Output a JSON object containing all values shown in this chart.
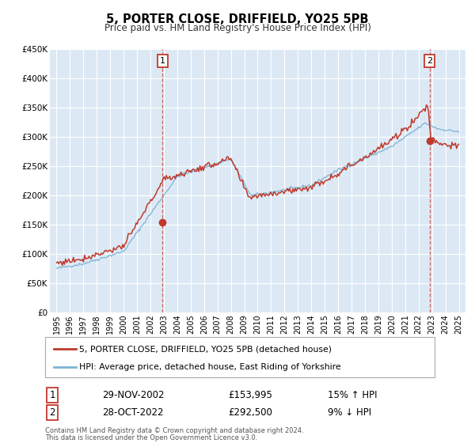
{
  "title": "5, PORTER CLOSE, DRIFFIELD, YO25 5PB",
  "subtitle": "Price paid vs. HM Land Registry's House Price Index (HPI)",
  "xlim": [
    1994.5,
    2025.5
  ],
  "ylim": [
    0,
    450000
  ],
  "yticks": [
    0,
    50000,
    100000,
    150000,
    200000,
    250000,
    300000,
    350000,
    400000,
    450000
  ],
  "ytick_labels": [
    "£0",
    "£50K",
    "£100K",
    "£150K",
    "£200K",
    "£250K",
    "£300K",
    "£350K",
    "£400K",
    "£450K"
  ],
  "xticks": [
    1995,
    1996,
    1997,
    1998,
    1999,
    2000,
    2001,
    2002,
    2003,
    2004,
    2005,
    2006,
    2007,
    2008,
    2009,
    2010,
    2011,
    2012,
    2013,
    2014,
    2015,
    2016,
    2017,
    2018,
    2019,
    2020,
    2021,
    2022,
    2023,
    2024,
    2025
  ],
  "red_color": "#c0392b",
  "blue_color": "#7fb3d3",
  "bg_color": "#dce9f5",
  "grid_color": "#ffffff",
  "ann1_x": 2002.9,
  "ann1_y": 153995,
  "ann2_x": 2022.83,
  "ann2_y": 292500,
  "legend_line1": "5, PORTER CLOSE, DRIFFIELD, YO25 5PB (detached house)",
  "legend_line2": "HPI: Average price, detached house, East Riding of Yorkshire",
  "row1_num": "1",
  "row1_date": "29-NOV-2002",
  "row1_price": "£153,995",
  "row1_hpi": "15% ↑ HPI",
  "row2_num": "2",
  "row2_date": "28-OCT-2022",
  "row2_price": "£292,500",
  "row2_hpi": "9% ↓ HPI",
  "footer1": "Contains HM Land Registry data © Crown copyright and database right 2024.",
  "footer2": "This data is licensed under the Open Government Licence v3.0."
}
